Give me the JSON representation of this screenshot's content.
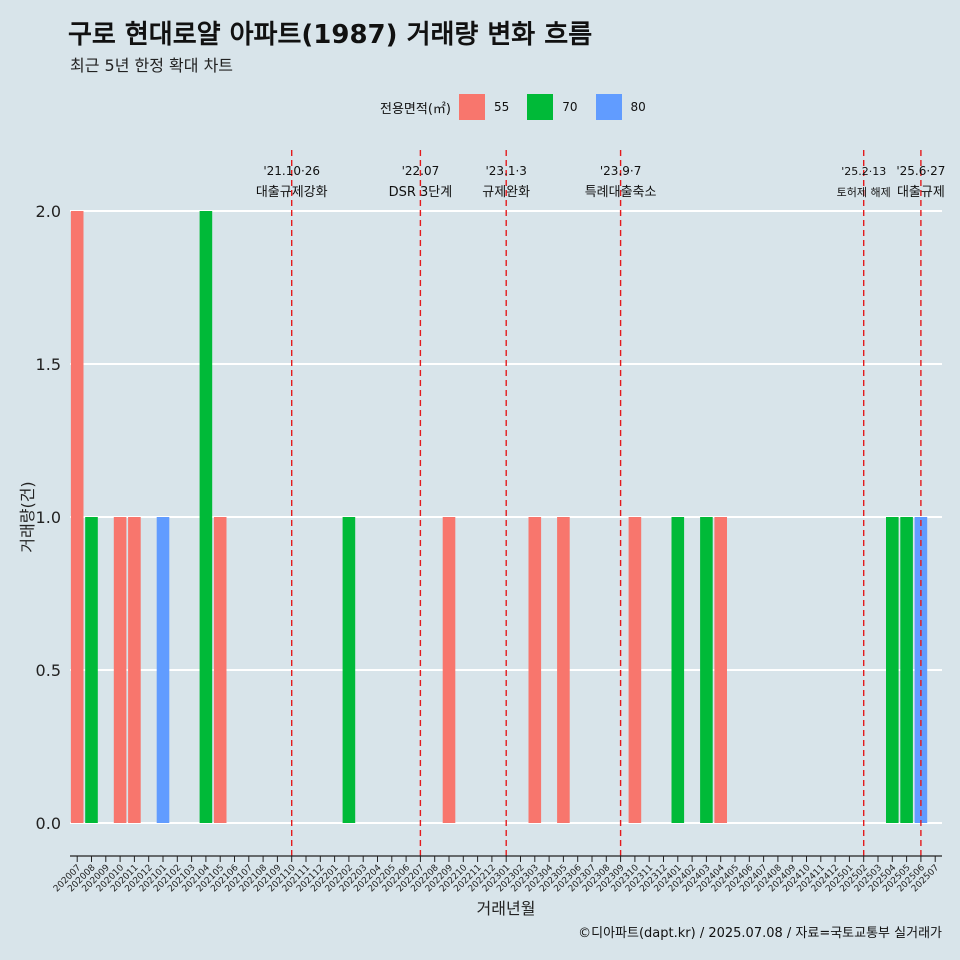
{
  "title": "구로 현대로얄 아파트(1987) 거래량 변화 흐름",
  "subtitle": "최근 5년 한정 확대 차트",
  "caption": "©디아파트(dapt.kr) / 2025.07.08 / 자료=국토교통부 실거래가",
  "legend": {
    "title": "전용면적(㎡)",
    "items": [
      {
        "label": "55",
        "color": "#F8766D"
      },
      {
        "label": "70",
        "color": "#00BA38"
      },
      {
        "label": "80",
        "color": "#619CFF"
      }
    ]
  },
  "chart_data": {
    "type": "bar",
    "xlabel": "거래년월",
    "ylabel": "거래량(건)",
    "ylim": [
      0,
      2
    ],
    "yticks": [
      "0.0",
      "0.5",
      "1.0",
      "1.5",
      "2.0"
    ],
    "grid": true,
    "categories": [
      "202007",
      "202008",
      "202009",
      "202010",
      "202011",
      "202012",
      "202101",
      "202102",
      "202103",
      "202104",
      "202105",
      "202106",
      "202107",
      "202108",
      "202109",
      "202110",
      "202111",
      "202112",
      "202201",
      "202202",
      "202203",
      "202204",
      "202205",
      "202206",
      "202207",
      "202208",
      "202209",
      "202210",
      "202211",
      "202212",
      "202301",
      "202302",
      "202303",
      "202304",
      "202305",
      "202306",
      "202307",
      "202308",
      "202309",
      "202310",
      "202311",
      "202312",
      "202401",
      "202402",
      "202403",
      "202404",
      "202405",
      "202406",
      "202407",
      "202408",
      "202409",
      "202410",
      "202411",
      "202412",
      "202501",
      "202502",
      "202503",
      "202504",
      "202505",
      "202506",
      "202507"
    ],
    "series": [
      {
        "name": "55",
        "color": "#F8766D",
        "values": [
          2,
          0,
          0,
          1,
          1,
          0,
          0,
          0,
          0,
          0,
          1,
          0,
          0,
          0,
          0,
          0,
          0,
          0,
          0,
          0,
          0,
          0,
          0,
          0,
          0,
          0,
          1,
          0,
          0,
          0,
          0,
          0,
          1,
          0,
          1,
          0,
          0,
          0,
          0,
          1,
          0,
          0,
          0,
          0,
          0,
          1,
          0,
          0,
          0,
          0,
          0,
          0,
          0,
          0,
          0,
          0,
          0,
          0,
          0,
          0,
          0
        ]
      },
      {
        "name": "70",
        "color": "#00BA38",
        "values": [
          0,
          1,
          0,
          0,
          0,
          0,
          0,
          0,
          0,
          2,
          0,
          0,
          0,
          0,
          0,
          0,
          0,
          0,
          0,
          1,
          0,
          0,
          0,
          0,
          0,
          0,
          0,
          0,
          0,
          0,
          0,
          0,
          0,
          0,
          0,
          0,
          0,
          0,
          0,
          0,
          0,
          0,
          1,
          0,
          1,
          0,
          0,
          0,
          0,
          0,
          0,
          0,
          0,
          0,
          0,
          0,
          0,
          1,
          1,
          0,
          0
        ]
      },
      {
        "name": "80",
        "color": "#619CFF",
        "values": [
          0,
          0,
          0,
          0,
          0,
          0,
          1,
          0,
          0,
          0,
          0,
          0,
          0,
          0,
          0,
          0,
          0,
          0,
          0,
          0,
          0,
          0,
          0,
          0,
          0,
          0,
          0,
          0,
          0,
          0,
          0,
          0,
          0,
          0,
          0,
          0,
          0,
          0,
          0,
          0,
          0,
          0,
          0,
          0,
          0,
          0,
          0,
          0,
          0,
          0,
          0,
          0,
          0,
          0,
          0,
          0,
          0,
          0,
          0,
          1,
          0
        ]
      }
    ],
    "annotations": [
      {
        "x": "202110",
        "date": "'21.10·26",
        "label": "대출규제강화"
      },
      {
        "x": "202207",
        "date": "'22.07",
        "label": "DSR 3단계"
      },
      {
        "x": "202301",
        "date": "'23.1·3",
        "label": "규제완화"
      },
      {
        "x": "202309",
        "date": "'23.9·7",
        "label": "특례대출축소"
      },
      {
        "x": "202502",
        "date": "'25.2·13",
        "label": "토허제 해제"
      },
      {
        "x": "202506",
        "date": "'25.6·27",
        "label": "대출규제"
      }
    ]
  }
}
